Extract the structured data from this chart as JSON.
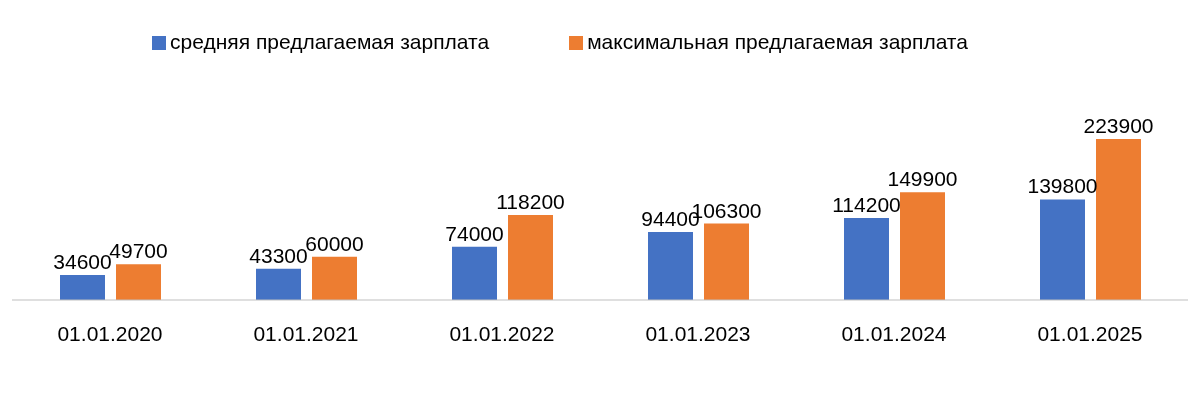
{
  "chart_data": {
    "type": "bar",
    "categories": [
      "01.01.2020",
      "01.01.2021",
      "01.01.2022",
      "01.01.2023",
      "01.01.2024",
      "01.01.2025"
    ],
    "series": [
      {
        "name": "средняя предлагаемая зарплата",
        "color": "#4472c4",
        "values": [
          34600,
          43300,
          74000,
          94400,
          114200,
          139800
        ]
      },
      {
        "name": "максимальная предлагаемая зарплата",
        "color": "#ed7d31",
        "values": [
          49700,
          60000,
          118200,
          106300,
          149900,
          223900
        ]
      }
    ],
    "data_labels": true,
    "legend": "top",
    "grid": false
  }
}
